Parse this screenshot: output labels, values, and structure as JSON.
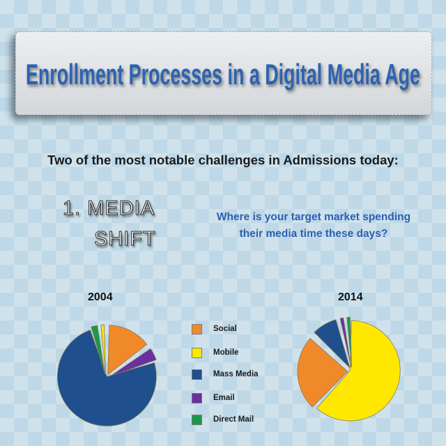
{
  "header": {
    "title": "Enrollment Processes in a Digital Media Age"
  },
  "subtitle": "Two of the most notable challenges in Admissions today:",
  "section": {
    "line1": "1. MEDIA",
    "line2": "SHIFT"
  },
  "question": {
    "line1": "Where is your target market spending",
    "line2": "their media time these days?"
  },
  "legend": [
    {
      "label": "Social",
      "color": "#f0892a"
    },
    {
      "label": "Mobile",
      "color": "#ffe800"
    },
    {
      "label": "Mass Media",
      "color": "#1f4f8c"
    },
    {
      "label": "Email",
      "color": "#6a2fa0"
    },
    {
      "label": "Direct Mail",
      "color": "#1a9a48"
    }
  ],
  "chart_data": [
    {
      "type": "pie",
      "title": "2004",
      "slices": [
        {
          "label": "Social",
          "value": 15
        },
        {
          "label": "Email",
          "value": 5
        },
        {
          "label": "Mass Media",
          "value": 75
        },
        {
          "label": "Direct Mail",
          "value": 3
        },
        {
          "label": "Mobile",
          "value": 2
        }
      ]
    },
    {
      "type": "pie",
      "title": "2014",
      "slices": [
        {
          "label": "Mobile",
          "value": 62
        },
        {
          "label": "Social",
          "value": 25
        },
        {
          "label": "Mass Media",
          "value": 9
        },
        {
          "label": "Email",
          "value": 2
        },
        {
          "label": "Direct Mail",
          "value": 2
        }
      ]
    }
  ]
}
